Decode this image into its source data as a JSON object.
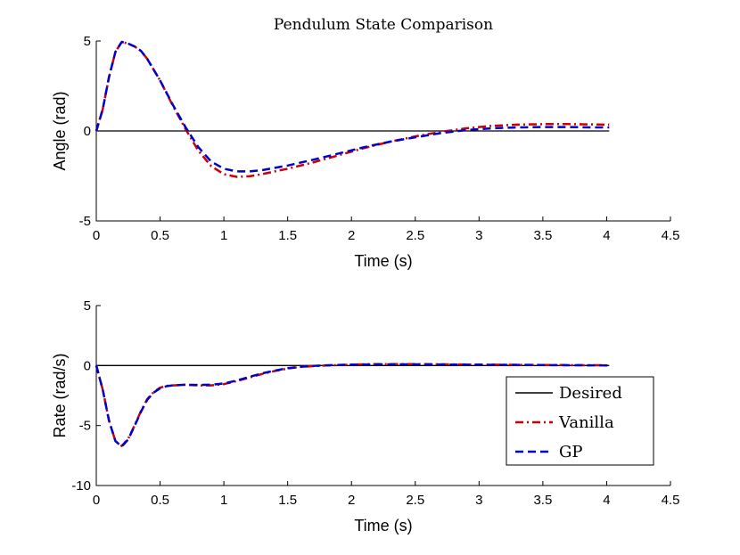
{
  "title": "Pendulum State Comparison",
  "legend": {
    "placement": "bottom-right of lower axes",
    "entries": [
      {
        "label": "Desired",
        "color": "#000000",
        "style": "solid"
      },
      {
        "label": "Vanilla",
        "color": "#cc0000",
        "style": "dashdot"
      },
      {
        "label": "GP",
        "color": "#0000cc",
        "style": "dashed"
      }
    ]
  },
  "chart_data": [
    {
      "type": "line",
      "xlabel": "Time (s)",
      "ylabel": "Angle (rad)",
      "xlim": [
        0,
        4.5
      ],
      "ylim": [
        -5,
        5
      ],
      "xticks": [
        "0",
        "0.5",
        "1",
        "1.5",
        "2",
        "2.5",
        "3",
        "3.5",
        "4",
        "4.5"
      ],
      "yticks": [
        "-5",
        "0",
        "5"
      ],
      "series": [
        {
          "name": "Desired",
          "color": "#000000",
          "style": "solid",
          "x": [
            0,
            4.02
          ],
          "y": [
            0,
            0
          ]
        },
        {
          "name": "Vanilla",
          "color": "#cc0000",
          "style": "dashdot",
          "x": [
            0,
            0.05,
            0.1,
            0.15,
            0.2,
            0.25,
            0.3,
            0.35,
            0.4,
            0.5,
            0.6,
            0.7,
            0.8,
            0.9,
            1.0,
            1.1,
            1.2,
            1.3,
            1.4,
            1.5,
            1.7,
            1.9,
            2.1,
            2.3,
            2.5,
            2.7,
            2.9,
            3.1,
            3.3,
            3.5,
            3.7,
            3.9,
            4.02
          ],
          "y": [
            0,
            1.2,
            3.0,
            4.4,
            4.95,
            4.85,
            4.7,
            4.45,
            4.0,
            2.8,
            1.4,
            0.1,
            -1.1,
            -1.95,
            -2.4,
            -2.55,
            -2.52,
            -2.4,
            -2.25,
            -2.1,
            -1.75,
            -1.35,
            -0.95,
            -0.6,
            -0.3,
            -0.05,
            0.15,
            0.28,
            0.35,
            0.38,
            0.38,
            0.36,
            0.35
          ]
        },
        {
          "name": "GP",
          "color": "#0000cc",
          "style": "dashed",
          "x": [
            0,
            0.05,
            0.1,
            0.15,
            0.2,
            0.25,
            0.3,
            0.35,
            0.4,
            0.5,
            0.6,
            0.7,
            0.8,
            0.9,
            1.0,
            1.1,
            1.2,
            1.3,
            1.4,
            1.5,
            1.7,
            1.9,
            2.1,
            2.3,
            2.5,
            2.7,
            2.9,
            3.1,
            3.3,
            3.5,
            3.7,
            3.9,
            4.02
          ],
          "y": [
            0,
            1.2,
            3.0,
            4.4,
            4.95,
            4.85,
            4.7,
            4.45,
            4.0,
            2.8,
            1.45,
            0.2,
            -0.9,
            -1.7,
            -2.1,
            -2.25,
            -2.25,
            -2.18,
            -2.05,
            -1.92,
            -1.6,
            -1.25,
            -0.9,
            -0.6,
            -0.35,
            -0.12,
            0.05,
            0.15,
            0.2,
            0.22,
            0.22,
            0.2,
            0.2
          ]
        }
      ]
    },
    {
      "type": "line",
      "xlabel": "Time (s)",
      "ylabel": "Rate (rad/s)",
      "xlim": [
        0,
        4.5
      ],
      "ylim": [
        -10,
        5
      ],
      "xticks": [
        "0",
        "0.5",
        "1",
        "1.5",
        "2",
        "2.5",
        "3",
        "3.5",
        "4",
        "4.5"
      ],
      "yticks": [
        "-10",
        "-5",
        "0",
        "5"
      ],
      "series": [
        {
          "name": "Desired",
          "color": "#000000",
          "style": "solid",
          "x": [
            0,
            4.02
          ],
          "y": [
            0,
            0
          ]
        },
        {
          "name": "Vanilla",
          "color": "#cc0000",
          "style": "dashdot",
          "x": [
            0,
            0.05,
            0.1,
            0.15,
            0.2,
            0.25,
            0.3,
            0.35,
            0.4,
            0.45,
            0.5,
            0.55,
            0.6,
            0.7,
            0.8,
            0.9,
            1.0,
            1.1,
            1.2,
            1.3,
            1.4,
            1.5,
            1.6,
            1.7,
            1.8,
            2.0,
            2.2,
            2.5,
            3.0,
            3.5,
            4.02
          ],
          "y": [
            0,
            -2.0,
            -4.6,
            -6.3,
            -6.7,
            -6.1,
            -5.0,
            -3.8,
            -2.8,
            -2.2,
            -1.85,
            -1.7,
            -1.65,
            -1.6,
            -1.65,
            -1.65,
            -1.55,
            -1.3,
            -1.0,
            -0.7,
            -0.45,
            -0.25,
            -0.12,
            -0.05,
            0.0,
            0.08,
            0.12,
            0.12,
            0.08,
            0.05,
            0.02
          ]
        },
        {
          "name": "GP",
          "color": "#0000cc",
          "style": "dashed",
          "x": [
            0,
            0.05,
            0.1,
            0.15,
            0.2,
            0.25,
            0.3,
            0.35,
            0.4,
            0.45,
            0.5,
            0.55,
            0.6,
            0.7,
            0.8,
            0.9,
            1.0,
            1.1,
            1.2,
            1.3,
            1.4,
            1.5,
            1.6,
            1.7,
            1.8,
            2.0,
            2.2,
            2.5,
            3.0,
            3.5,
            4.02
          ],
          "y": [
            0,
            -2.0,
            -4.6,
            -6.3,
            -6.75,
            -6.15,
            -5.05,
            -3.85,
            -2.85,
            -2.25,
            -1.9,
            -1.72,
            -1.65,
            -1.6,
            -1.62,
            -1.6,
            -1.5,
            -1.25,
            -0.95,
            -0.65,
            -0.42,
            -0.22,
            -0.1,
            -0.03,
            0.02,
            0.08,
            0.1,
            0.1,
            0.07,
            0.04,
            0.01
          ]
        }
      ]
    }
  ]
}
